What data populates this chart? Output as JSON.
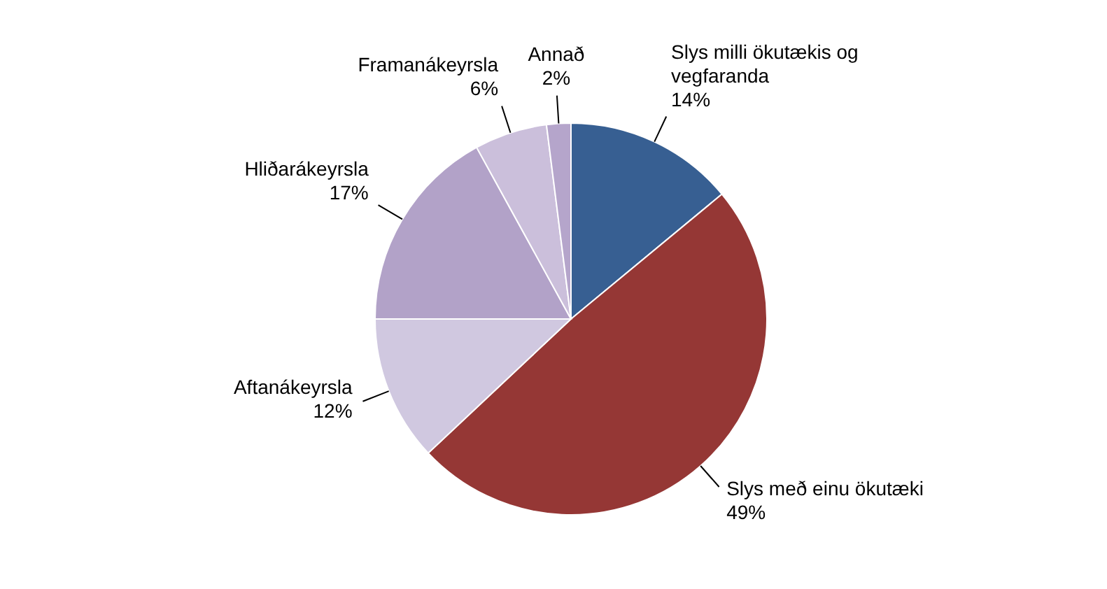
{
  "chart_data": {
    "type": "pie",
    "categories": [
      "Slys milli ökutækis og vegfaranda",
      "Slys með einu ökutæki",
      "Aftanákeyrsla",
      "Hliðarákeyrsla",
      "Framanákeyrsla",
      "Annað"
    ],
    "values": [
      14,
      49,
      12,
      17,
      6,
      2
    ],
    "value_labels": [
      "14%",
      "49%",
      "12%",
      "17%",
      "6%",
      "2%"
    ],
    "colors": [
      "#375f92",
      "#953735",
      "#d0c8e0",
      "#b2a2c8",
      "#cbbfdb",
      "#b5a5cb"
    ],
    "legend": false
  }
}
